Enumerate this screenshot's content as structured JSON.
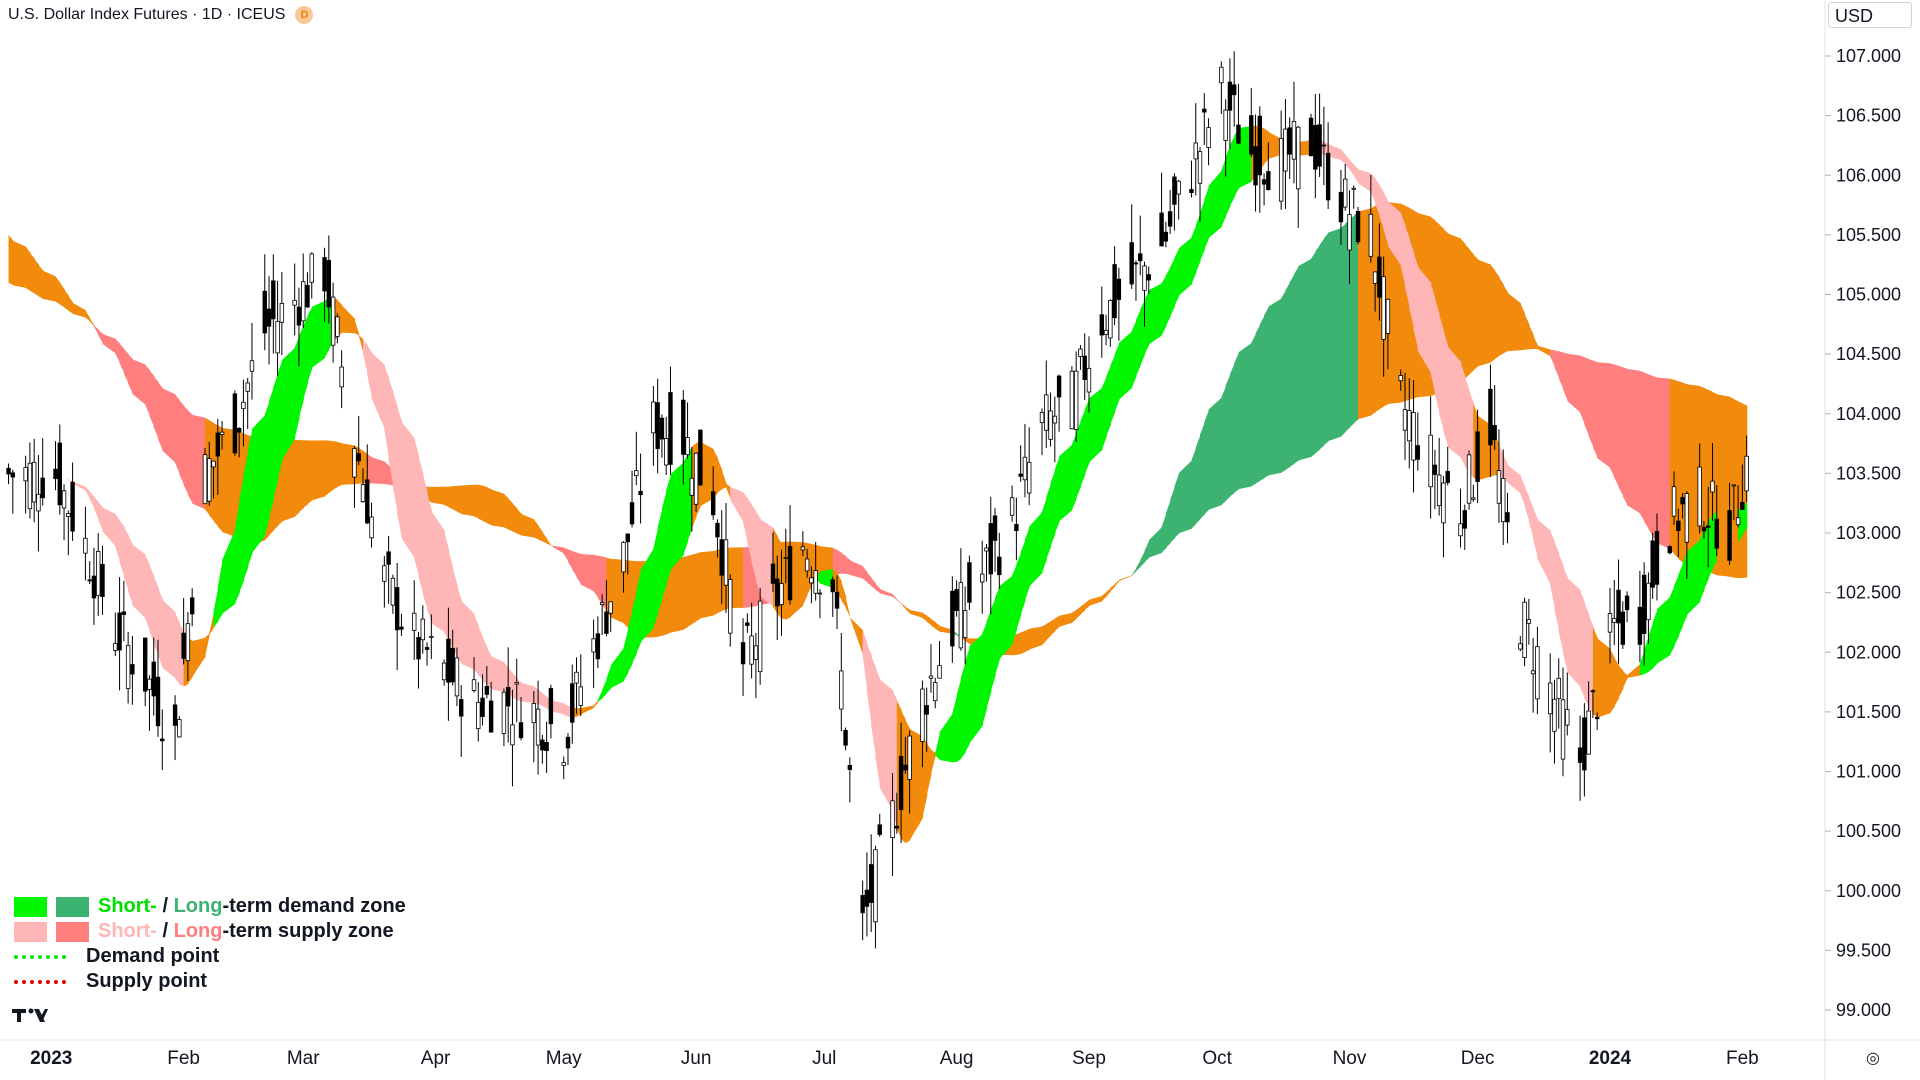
{
  "header": {
    "symbol_title": "U.S. Dollar Index Futures · 1D · ICEUS",
    "interval_badge": "D"
  },
  "price_scale": {
    "currency": "USD",
    "ticks": [
      "107.000",
      "106.500",
      "106.000",
      "105.500",
      "105.000",
      "104.500",
      "104.000",
      "103.500",
      "103.000",
      "102.500",
      "102.000",
      "101.500",
      "101.000",
      "100.500",
      "100.000",
      "99.500",
      "99.000"
    ]
  },
  "time_axis": {
    "labels": [
      "2023",
      "Feb",
      "Mar",
      "Apr",
      "May",
      "Jun",
      "Jul",
      "Aug",
      "Sep",
      "Oct",
      "Nov",
      "Dec",
      "2024",
      "Feb"
    ]
  },
  "legend": {
    "row1_short": "Short-",
    "row1_sep": " / ",
    "row1_long": "Long",
    "row1_rest": "-term demand zone",
    "row2_short": "Short-",
    "row2_sep": " / ",
    "row2_long": "Long",
    "row2_rest": "-term supply zone",
    "demand_point": "Demand point",
    "supply_point": "Supply point"
  },
  "colors": {
    "short_demand": "#00f700",
    "long_demand": "#3cb371",
    "short_supply": "#ffb6b6",
    "long_supply": "#ff7f7f",
    "neutral_zone": "#f28a0c",
    "candle": "#000000",
    "demand_point": "#00e000",
    "supply_point": "#e00000"
  },
  "chart_data": {
    "type": "candlestick",
    "symbol": "U.S. Dollar Index Futures",
    "interval": "1D",
    "ylim": [
      98.95,
      107.3
    ],
    "x_labels": [
      "2023",
      "Feb",
      "Mar",
      "Apr",
      "May",
      "Jun",
      "Jul",
      "Aug",
      "Sep",
      "Oct",
      "Nov",
      "Dec",
      "2024",
      "Feb"
    ],
    "close_series": [
      {
        "date": "2023-01-02",
        "close": 103.5
      },
      {
        "date": "2023-01-09",
        "close": 102.9
      },
      {
        "date": "2023-01-16",
        "close": 102.2
      },
      {
        "date": "2023-01-23",
        "close": 101.8
      },
      {
        "date": "2023-01-30",
        "close": 101.3
      },
      {
        "date": "2023-02-06",
        "close": 103.5
      },
      {
        "date": "2023-02-13",
        "close": 103.9
      },
      {
        "date": "2023-02-20",
        "close": 104.7
      },
      {
        "date": "2023-03-06",
        "close": 105.2
      },
      {
        "date": "2023-03-13",
        "close": 103.8
      },
      {
        "date": "2023-03-20",
        "close": 102.6
      },
      {
        "date": "2023-03-27",
        "close": 102.1
      },
      {
        "date": "2023-04-10",
        "close": 101.6
      },
      {
        "date": "2023-04-17",
        "close": 101.6
      },
      {
        "date": "2023-04-24",
        "close": 101.5
      },
      {
        "date": "2023-05-01",
        "close": 101.3
      },
      {
        "date": "2023-05-15",
        "close": 102.8
      },
      {
        "date": "2023-05-22",
        "close": 103.9
      },
      {
        "date": "2023-05-29",
        "close": 103.8
      },
      {
        "date": "2023-06-05",
        "close": 103.3
      },
      {
        "date": "2023-06-12",
        "close": 101.9
      },
      {
        "date": "2023-06-26",
        "close": 102.9
      },
      {
        "date": "2023-07-03",
        "close": 102.6
      },
      {
        "date": "2023-07-10",
        "close": 99.7
      },
      {
        "date": "2023-07-17",
        "close": 100.6
      },
      {
        "date": "2023-07-24",
        "close": 101.6
      },
      {
        "date": "2023-07-31",
        "close": 102.2
      },
      {
        "date": "2023-08-14",
        "close": 103.1
      },
      {
        "date": "2023-08-21",
        "close": 103.9
      },
      {
        "date": "2023-08-28",
        "close": 104.1
      },
      {
        "date": "2023-09-04",
        "close": 104.8
      },
      {
        "date": "2023-09-18",
        "close": 105.4
      },
      {
        "date": "2023-10-02",
        "close": 106.7
      },
      {
        "date": "2023-10-09",
        "close": 106.2
      },
      {
        "date": "2023-10-16",
        "close": 106.1
      },
      {
        "date": "2023-10-23",
        "close": 106.3
      },
      {
        "date": "2023-10-30",
        "close": 105.8
      },
      {
        "date": "2023-11-06",
        "close": 105.5
      },
      {
        "date": "2023-11-13",
        "close": 104.1
      },
      {
        "date": "2023-11-20",
        "close": 103.6
      },
      {
        "date": "2023-11-27",
        "close": 103.2
      },
      {
        "date": "2023-12-04",
        "close": 103.9
      },
      {
        "date": "2023-12-11",
        "close": 102.3
      },
      {
        "date": "2023-12-18",
        "close": 101.7
      },
      {
        "date": "2023-12-25",
        "close": 101.1
      },
      {
        "date": "2024-01-02",
        "close": 102.2
      },
      {
        "date": "2024-01-08",
        "close": 102.3
      },
      {
        "date": "2024-01-15",
        "close": 103.1
      },
      {
        "date": "2024-01-22",
        "close": 103.3
      },
      {
        "date": "2024-01-29",
        "close": 103.0
      },
      {
        "date": "2024-02-02",
        "close": 103.6
      }
    ],
    "zones": [
      {
        "name": "Short-term demand zone"
      },
      {
        "name": "Long-term demand zone"
      },
      {
        "name": "Short-term supply zone"
      },
      {
        "name": "Long-term supply zone"
      }
    ],
    "grid": false,
    "legend_position": "bottom-left"
  }
}
